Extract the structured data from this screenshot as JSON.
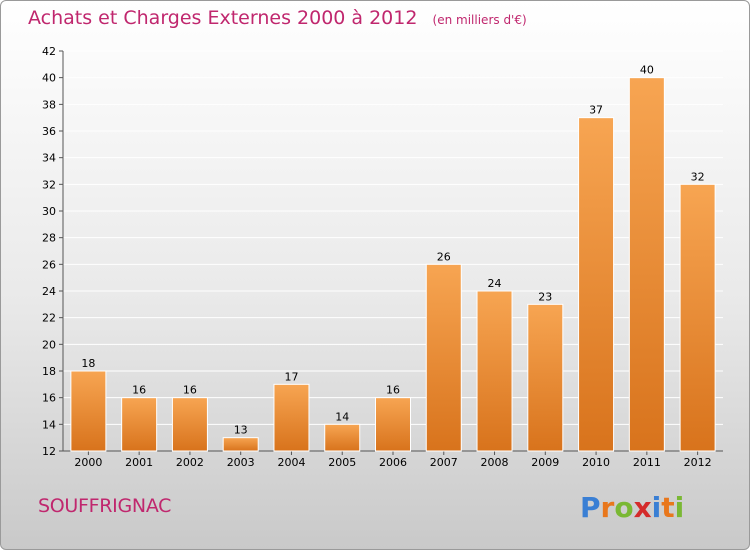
{
  "title": "Achats et Charges Externes 2000 à 2012",
  "unit": "(en milliers d'€)",
  "commune": "SOUFFRIGNAC",
  "logo_text": "Proxiti",
  "colors": {
    "title": "#c0276e",
    "bar_light": "#f7a552",
    "bar_dark": "#d8731c",
    "grid": "#ffffff",
    "axis_text": "#000000"
  },
  "chart_data": {
    "type": "bar",
    "title": "Achats et Charges Externes 2000 à 2012",
    "subtitle": "(en milliers d'€)",
    "xlabel": "",
    "ylabel": "",
    "categories": [
      "2000",
      "2001",
      "2002",
      "2003",
      "2004",
      "2005",
      "2006",
      "2007",
      "2008",
      "2009",
      "2010",
      "2011",
      "2012"
    ],
    "values": [
      18,
      16,
      16,
      13,
      17,
      14,
      16,
      26,
      24,
      23,
      37,
      40,
      32
    ],
    "ylim": [
      12,
      42
    ],
    "yticks": [
      12,
      14,
      16,
      18,
      20,
      22,
      24,
      26,
      28,
      30,
      32,
      34,
      36,
      38,
      40,
      42
    ],
    "grid": true,
    "data_labels": true
  }
}
